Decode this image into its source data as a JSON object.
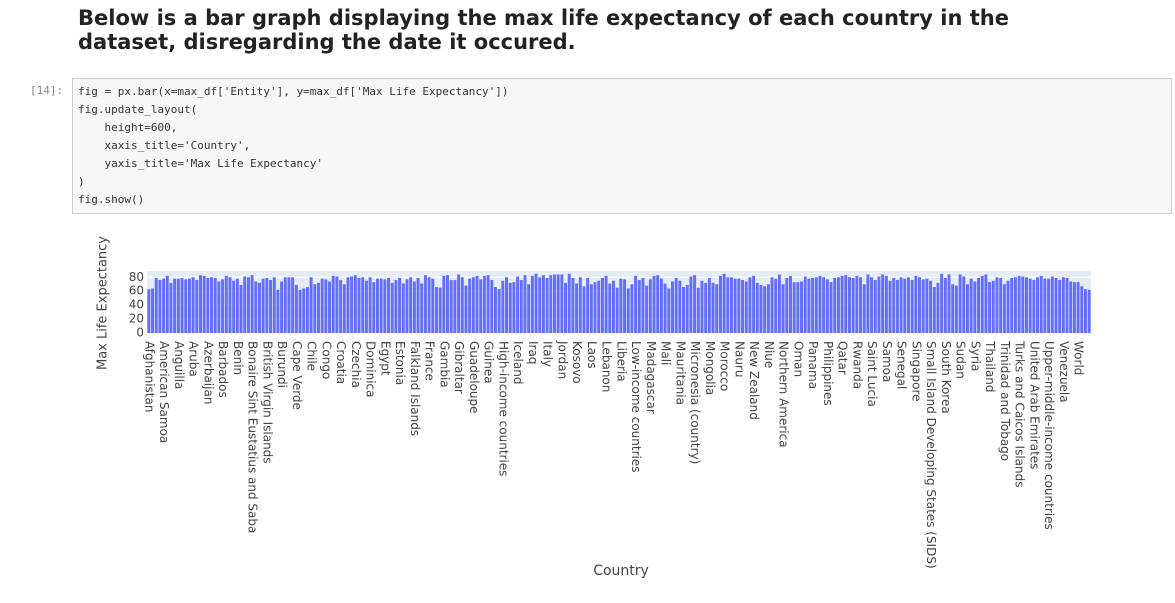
{
  "heading": "Below is a bar graph displaying the max life expectancy of each country in the dataset, disregarding the date it occured.",
  "cell": {
    "prompt": "[14]:",
    "code": [
      "fig = px.bar(x=max_df['Entity'], y=max_df['Max Life Expectancy'])",
      "fig.update_layout(",
      "    height=600,",
      "    xaxis_title='Country',",
      "    yaxis_title='Max Life Expectancy'",
      ")",
      "fig.show()"
    ]
  },
  "chart_data": {
    "type": "bar",
    "x_label": "Country",
    "y_label": "Max Life Expectancy",
    "color": "#636efa",
    "grid": true,
    "ylim": [
      0,
      89
    ],
    "yticks": [
      0,
      20,
      40,
      60,
      80
    ],
    "categories": [
      "Afghanistan",
      null,
      null,
      null,
      "American Samoa",
      null,
      null,
      null,
      "Anguilla",
      null,
      null,
      null,
      "Aruba",
      null,
      null,
      null,
      "Azerbaijan",
      null,
      null,
      null,
      "Barbados",
      null,
      null,
      null,
      "Benin",
      null,
      null,
      null,
      "Bonaire Sint Eustatius and Saba",
      null,
      null,
      null,
      "British Virgin Islands",
      null,
      null,
      null,
      "Burundi",
      null,
      null,
      null,
      "Cape Verde",
      null,
      null,
      null,
      "Chile",
      null,
      null,
      null,
      "Congo",
      null,
      null,
      null,
      "Croatia",
      null,
      null,
      null,
      "Czechia",
      null,
      null,
      null,
      "Dominica",
      null,
      null,
      null,
      "Egypt",
      null,
      null,
      null,
      "Estonia",
      null,
      null,
      null,
      "Falkland Islands",
      null,
      null,
      null,
      "France",
      null,
      null,
      null,
      "Gambia",
      null,
      null,
      null,
      "Gibraltar",
      null,
      null,
      null,
      "Guadeloupe",
      null,
      null,
      null,
      "Guinea",
      null,
      null,
      null,
      "High-income countries",
      null,
      null,
      null,
      "Iceland",
      null,
      null,
      null,
      "Iraq",
      null,
      null,
      null,
      "Italy",
      null,
      null,
      null,
      "Jordan",
      null,
      null,
      null,
      "Kosovo",
      null,
      null,
      null,
      "Laos",
      null,
      null,
      null,
      "Lebanon",
      null,
      null,
      null,
      "Liberia",
      null,
      null,
      null,
      "Low-income countries",
      null,
      null,
      null,
      "Madagascar",
      null,
      null,
      null,
      "Mali",
      null,
      null,
      null,
      "Mauritania",
      null,
      null,
      null,
      "Micronesia (country)",
      null,
      null,
      null,
      "Mongolia",
      null,
      null,
      null,
      "Morocco",
      null,
      null,
      null,
      "Nauru",
      null,
      null,
      null,
      "New Zealand",
      null,
      null,
      null,
      "Niue",
      null,
      null,
      null,
      "Northern America",
      null,
      null,
      null,
      "Oman",
      null,
      null,
      null,
      "Panama",
      null,
      null,
      null,
      "Philippines",
      null,
      null,
      null,
      "Qatar",
      null,
      null,
      null,
      "Rwanda",
      null,
      null,
      null,
      "Saint Lucia",
      null,
      null,
      null,
      "Samoa",
      null,
      null,
      null,
      "Senegal",
      null,
      null,
      null,
      "Singapore",
      null,
      null,
      null,
      "Small Island Developing States (SIDS)",
      null,
      null,
      null,
      "South Korea",
      null,
      null,
      null,
      "Sudan",
      null,
      null,
      null,
      "Syria",
      null,
      null,
      null,
      "Thailand",
      null,
      null,
      null,
      "Trinidad and Tobago",
      null,
      null,
      null,
      "Turks and Caicos Islands",
      null,
      null,
      null,
      "United Arab Emirates",
      null,
      null,
      null,
      "Upper-middle-income countries",
      null,
      null,
      null,
      "Venezuela",
      null,
      null,
      null,
      "World",
      null,
      null,
      null
    ],
    "values": [
      63,
      64,
      79,
      76,
      78,
      82,
      72,
      78,
      78,
      79,
      77,
      78,
      80,
      76,
      83,
      82,
      79,
      80,
      79,
      74,
      77,
      82,
      80,
      75,
      78,
      69,
      81,
      80,
      83,
      74,
      72,
      78,
      79,
      76,
      80,
      62,
      74,
      80,
      80,
      80,
      69,
      62,
      64,
      66,
      80,
      70,
      72,
      78,
      77,
      74,
      82,
      81,
      76,
      70,
      80,
      81,
      83,
      79,
      80,
      75,
      80,
      73,
      78,
      78,
      77,
      79,
      72,
      76,
      79,
      71,
      77,
      80,
      74,
      79,
      71,
      83,
      80,
      78,
      66,
      65,
      82,
      83,
      76,
      76,
      84,
      80,
      68,
      78,
      80,
      82,
      77,
      82,
      83,
      76,
      66,
      63,
      75,
      80,
      72,
      73,
      81,
      76,
      83,
      70,
      82,
      85,
      80,
      83,
      79,
      83,
      84,
      84,
      84,
      72,
      85,
      79,
      71,
      80,
      67,
      79,
      70,
      73,
      75,
      79,
      82,
      71,
      75,
      65,
      78,
      77,
      64,
      70,
      82,
      76,
      79,
      68,
      77,
      82,
      83,
      78,
      71,
      64,
      74,
      79,
      75,
      66,
      69,
      81,
      83,
      65,
      75,
      72,
      79,
      72,
      70,
      82,
      85,
      80,
      80,
      78,
      78,
      76,
      74,
      80,
      82,
      72,
      69,
      67,
      70,
      80,
      78,
      84,
      70,
      79,
      82,
      73,
      73,
      74,
      81,
      78,
      79,
      80,
      82,
      80,
      77,
      73,
      79,
      80,
      82,
      83,
      80,
      79,
      82,
      80,
      70,
      84,
      80,
      76,
      81,
      84,
      82,
      75,
      79,
      76,
      80,
      78,
      80,
      76,
      82,
      80,
      77,
      78,
      75,
      66,
      72,
      85,
      79,
      84,
      70,
      68,
      84,
      81,
      70,
      78,
      74,
      79,
      82,
      84,
      73,
      75,
      80,
      79,
      70,
      75,
      79,
      80,
      82,
      81,
      80,
      78,
      76,
      80,
      82,
      78,
      78,
      81,
      79,
      76,
      80,
      79,
      74,
      73,
      73,
      67,
      63,
      62
    ]
  }
}
